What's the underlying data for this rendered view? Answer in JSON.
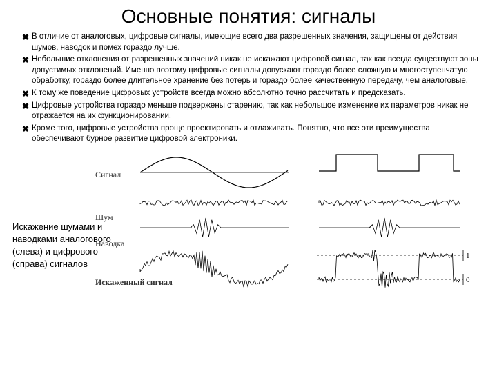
{
  "title": "Основные понятия:  сигналы",
  "bullets": [
    "В отличие от аналоговых, цифровые сигналы, имеющие всего два разрешенных значения, защищены от действия шумов, наводок и помех гораздо лучше.",
    "Небольшие отклонения от разрешенных значений никак не искажают цифровой сигнал, так как всегда существуют зоны допустимых отклонений. Именно поэтому цифровые сигналы допускают гораздо более сложную и многоступенчатую обработку, гораздо более длительное хранение без потерь и гораздо более качественную передачу, чем аналоговые.",
    "К тому же поведение цифровых устройств всегда можно абсолютно точно рассчитать и предсказать.",
    "Цифровые устройства гораздо меньше подвержены старению, так как небольшое изменение их параметров никак не отражается на их функционировании.",
    "Кроме того, цифровые устройства проще проектировать и отлаживать. Понятно, что все эти преимущества обеспечивают бурное развитие цифровой электроники."
  ],
  "caption": "Искажение шумами и наводками аналогового (слева) и цифрового (справа) сигналов",
  "row_labels": [
    "Сигнал",
    "Шум",
    "Наводка",
    "Искаженный\nсигнал"
  ],
  "level_labels": [
    "1",
    "0"
  ],
  "stroke_color": "#000000",
  "stroke_width": 1.2,
  "noise_width": 0.8,
  "dash_pattern": "3,3",
  "row_heights": {
    "signal": 60,
    "noise": 30,
    "pickup": 40,
    "distorted": 80
  },
  "analog_sine": {
    "amplitude": 22,
    "periods": 1
  },
  "digital_square": {
    "low": 22,
    "high": 2,
    "edges": [
      30,
      90,
      150,
      200
    ]
  },
  "noise_amp": 4,
  "pickup_amp": 14,
  "distorted_digital_levels": {
    "low": 50,
    "high": 15
  }
}
